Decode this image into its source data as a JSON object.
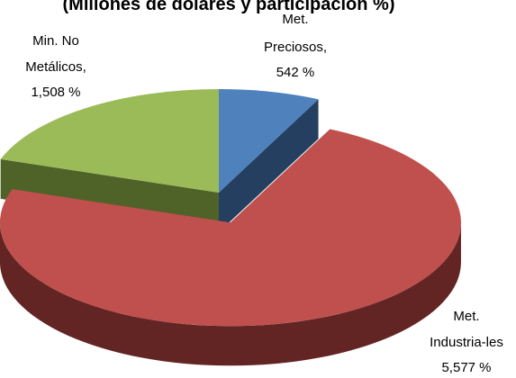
{
  "chart_data": {
    "type": "pie",
    "title": "(Millones de dólares y participación %)",
    "three_d": true,
    "legend": "none",
    "slices": [
      {
        "name": "Met. Preciosos",
        "value": 542,
        "label_lines": [
          "Met.",
          "Preciosos,",
          "542 %"
        ],
        "color": "#4F81BD",
        "side_color": "#243F60",
        "exploded": false
      },
      {
        "name": "Met. Industria-les",
        "value": 5577,
        "label_lines": [
          "Met.",
          "Industria-les",
          "5,577  %"
        ],
        "color": "#C0504D",
        "side_color": "#632523",
        "exploded": true
      },
      {
        "name": "Min. No Metálicos",
        "value": 1508,
        "label_lines": [
          "Min. No",
          "Metálicos,",
          "1,508 %"
        ],
        "color": "#9BBB59",
        "side_color": "#4F6228",
        "exploded": false
      }
    ]
  }
}
